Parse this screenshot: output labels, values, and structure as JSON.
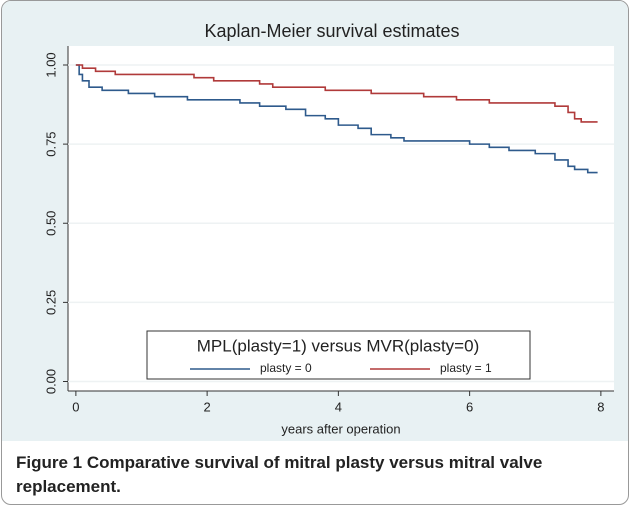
{
  "chart_data": {
    "type": "step",
    "title": "Kaplan-Meier survival estimates",
    "xlabel": "years after operation",
    "legend_title": "MPL(plasty=1) versus  MVR(plasty=0)",
    "series": [
      {
        "name": "plasty = 0",
        "color": "#2e5a8c",
        "x": [
          0,
          0.05,
          0.1,
          0.2,
          0.4,
          0.8,
          1.2,
          1.7,
          2.5,
          2.8,
          3.2,
          3.5,
          3.8,
          4.0,
          4.3,
          4.5,
          4.8,
          5.0,
          6.0,
          6.3,
          6.6,
          7.0,
          7.3,
          7.5,
          7.6,
          7.8,
          7.95
        ],
        "values": [
          1.0,
          0.97,
          0.95,
          0.93,
          0.92,
          0.91,
          0.9,
          0.89,
          0.88,
          0.87,
          0.86,
          0.84,
          0.83,
          0.81,
          0.8,
          0.78,
          0.77,
          0.76,
          0.75,
          0.74,
          0.73,
          0.72,
          0.7,
          0.68,
          0.67,
          0.66,
          0.66
        ]
      },
      {
        "name": "plasty = 1",
        "color": "#b03a3a",
        "x": [
          0,
          0.1,
          0.3,
          0.6,
          1.8,
          2.1,
          2.8,
          3.0,
          3.8,
          4.5,
          5.3,
          5.8,
          6.3,
          7.3,
          7.5,
          7.6,
          7.7,
          7.95
        ],
        "values": [
          1.0,
          0.99,
          0.98,
          0.97,
          0.96,
          0.95,
          0.94,
          0.93,
          0.92,
          0.91,
          0.9,
          0.89,
          0.88,
          0.87,
          0.85,
          0.83,
          0.82,
          0.82
        ]
      }
    ],
    "xlim": [
      -0.12,
      8.2
    ],
    "xticks": [
      0,
      2,
      4,
      6,
      8
    ],
    "ylim": [
      -0.03,
      1.06
    ],
    "yticks": [
      {
        "value": 0,
        "label": "0.00"
      },
      0.25,
      {
        "value": 0.5,
        "label": "0.50"
      },
      0.75,
      {
        "value": 1,
        "label": "1.00"
      }
    ],
    "grid": true
  },
  "caption": {
    "label": "Figure 1",
    "text": "Comparative survival of mitral plasty versus mitral valve replacement."
  }
}
